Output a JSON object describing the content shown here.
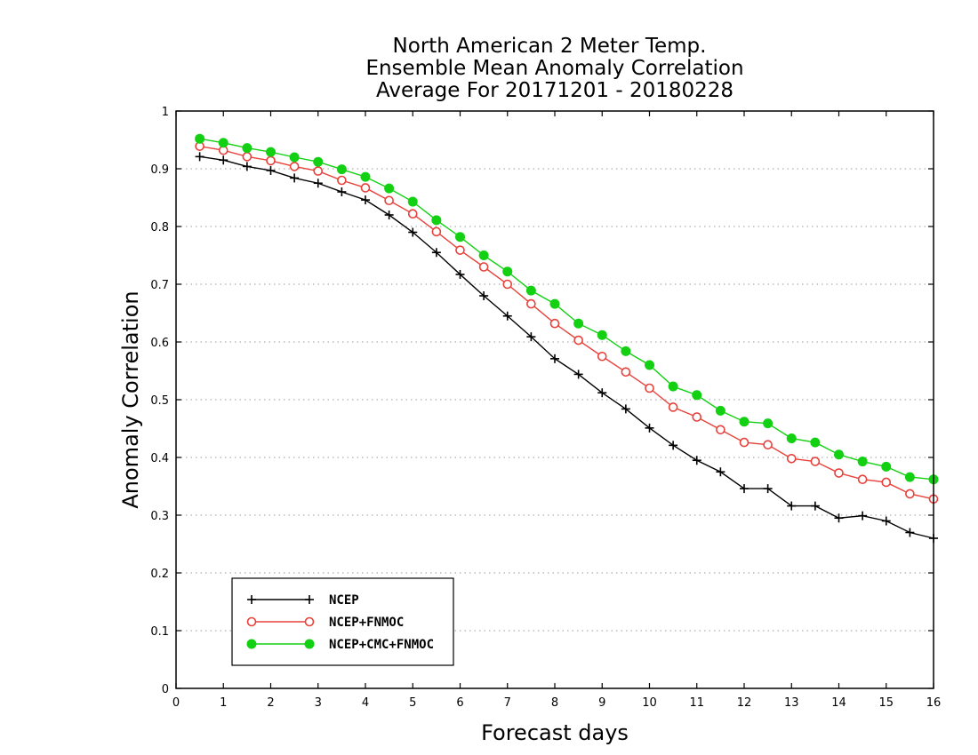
{
  "chart_data": {
    "type": "line",
    "title_lines": [
      "North American 2 Meter Temp.",
      "Ensemble Mean Anomaly Correlation",
      "Average For 20171201 - 20180228"
    ],
    "xlabel": "Forecast days",
    "ylabel": "Anomaly Correlation",
    "xlim": [
      0,
      16
    ],
    "ylim": [
      0,
      1
    ],
    "x_ticks": [
      0,
      1,
      2,
      3,
      4,
      5,
      6,
      7,
      8,
      9,
      10,
      11,
      12,
      13,
      14,
      15,
      16
    ],
    "y_ticks": [
      0,
      0.1,
      0.2,
      0.3,
      0.4,
      0.5,
      0.6,
      0.7,
      0.8,
      0.9,
      1
    ],
    "x_tick_labels": [
      "0",
      "1",
      "2",
      "3",
      "4",
      "5",
      "6",
      "7",
      "8",
      "9",
      "10",
      "11",
      "12",
      "13",
      "14",
      "15",
      "16"
    ],
    "y_tick_labels": [
      "0",
      "0.1",
      "0.2",
      "0.3",
      "0.4",
      "0.5",
      "0.6",
      "0.7",
      "0.8",
      "0.9",
      "1"
    ],
    "grid": "horizontal dotted",
    "legend_position": "bottom-left",
    "x": [
      0.5,
      1,
      1.5,
      2,
      2.5,
      3,
      3.5,
      4,
      4.5,
      5,
      5.5,
      6,
      6.5,
      7,
      7.5,
      8,
      8.5,
      9,
      9.5,
      10,
      10.5,
      11,
      11.5,
      12,
      12.5,
      13,
      13.5,
      14,
      14.5,
      15,
      15.5,
      16
    ],
    "series": [
      {
        "name": "NCEP",
        "color": "#000000",
        "marker": "plus",
        "values": [
          0.921,
          0.915,
          0.904,
          0.897,
          0.884,
          0.875,
          0.86,
          0.846,
          0.82,
          0.79,
          0.755,
          0.717,
          0.68,
          0.645,
          0.609,
          0.571,
          0.544,
          0.512,
          0.484,
          0.451,
          0.421,
          0.395,
          0.375,
          0.346,
          0.346,
          0.316,
          0.316,
          0.295,
          0.299,
          0.29,
          0.27,
          0.26
        ]
      },
      {
        "name": "NCEP+FNMOC",
        "color": "#e8413b",
        "marker": "open-circle",
        "values": [
          0.939,
          0.932,
          0.921,
          0.914,
          0.904,
          0.896,
          0.88,
          0.867,
          0.845,
          0.822,
          0.791,
          0.759,
          0.73,
          0.7,
          0.666,
          0.632,
          0.603,
          0.575,
          0.548,
          0.52,
          0.487,
          0.47,
          0.448,
          0.426,
          0.422,
          0.398,
          0.393,
          0.373,
          0.362,
          0.357,
          0.337,
          0.328
        ]
      },
      {
        "name": "NCEP+CMC+FNMOC",
        "color": "#13d013",
        "marker": "filled-circle",
        "values": [
          0.952,
          0.945,
          0.936,
          0.929,
          0.92,
          0.912,
          0.899,
          0.886,
          0.866,
          0.843,
          0.811,
          0.782,
          0.75,
          0.722,
          0.689,
          0.666,
          0.632,
          0.612,
          0.584,
          0.56,
          0.523,
          0.508,
          0.481,
          0.462,
          0.459,
          0.433,
          0.426,
          0.405,
          0.393,
          0.384,
          0.366,
          0.362
        ]
      }
    ]
  }
}
